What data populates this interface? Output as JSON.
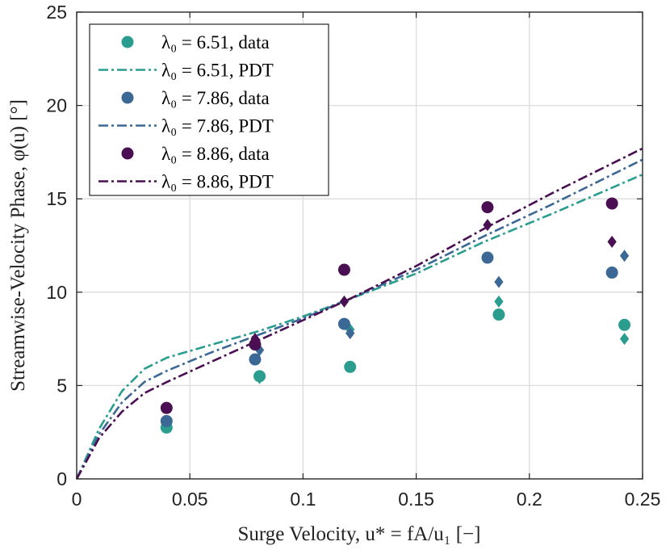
{
  "chart_data": {
    "type": "scatter",
    "title": "",
    "xlabel": "Surge Velocity, u* = fA/u₁ [−]",
    "ylabel": "Streamwise-Velocity Phase, φ(u) [°]",
    "xlim": [
      0,
      0.25
    ],
    "ylim": [
      0,
      25
    ],
    "x_ticks": [
      0,
      0.05,
      0.1,
      0.15,
      0.2,
      0.25
    ],
    "x_tick_labels": [
      "0",
      "0.05",
      "0.1",
      "0.15",
      "0.2",
      "0.25"
    ],
    "y_ticks": [
      0,
      5,
      10,
      15,
      20,
      25
    ],
    "y_tick_labels": [
      "0",
      "5",
      "10",
      "15",
      "20",
      "25"
    ],
    "grid": true,
    "legend_position": "top-left",
    "series": [
      {
        "name": "λ0 = 6.51, data",
        "legend_label": "λ₀ = 6.51, data",
        "kind": "markers",
        "color": "#2a9d8f",
        "circles": [
          [
            0.0397,
            2.75
          ],
          [
            0.0808,
            5.5
          ],
          [
            0.1208,
            6.0
          ],
          [
            0.1865,
            8.8
          ],
          [
            0.242,
            8.25
          ]
        ],
        "diamonds": [
          [
            0.0808,
            5.4
          ],
          [
            0.1208,
            8.0
          ],
          [
            0.1865,
            9.5
          ],
          [
            0.242,
            7.5
          ]
        ]
      },
      {
        "name": "λ0 = 6.51, PDT",
        "legend_label": "λ₀ = 6.51, PDT",
        "kind": "line",
        "color": "#2a9d8f",
        "x": [
          0,
          0.01,
          0.02,
          0.03,
          0.04,
          0.06,
          0.08,
          0.1,
          0.12,
          0.15,
          0.18,
          0.21,
          0.25
        ],
        "y": [
          0,
          2.7,
          4.7,
          5.9,
          6.5,
          7.2,
          7.9,
          8.7,
          9.6,
          11.0,
          12.7,
          14.2,
          16.3
        ]
      },
      {
        "name": "λ0 = 7.86, data",
        "legend_label": "λ₀ = 7.86, data",
        "kind": "markers",
        "color": "#3b6894",
        "circles": [
          [
            0.0397,
            3.1
          ],
          [
            0.0788,
            6.4
          ],
          [
            0.1182,
            8.3
          ],
          [
            0.1815,
            11.85
          ],
          [
            0.2365,
            11.05
          ]
        ],
        "diamonds": [
          [
            0.0808,
            6.9
          ],
          [
            0.1208,
            7.8
          ],
          [
            0.1865,
            10.55
          ],
          [
            0.242,
            11.95
          ]
        ]
      },
      {
        "name": "λ0 = 7.86, PDT",
        "legend_label": "λ₀ = 7.86, PDT",
        "kind": "line",
        "color": "#3b6894",
        "x": [
          0,
          0.01,
          0.02,
          0.03,
          0.04,
          0.06,
          0.08,
          0.1,
          0.12,
          0.15,
          0.18,
          0.21,
          0.25
        ],
        "y": [
          0,
          2.4,
          4.1,
          5.2,
          5.8,
          6.8,
          7.7,
          8.6,
          9.6,
          11.2,
          13.0,
          14.7,
          17.1
        ]
      },
      {
        "name": "λ0 = 8.86, data",
        "legend_label": "λ₀ = 8.86, data",
        "kind": "markers",
        "color": "#4a0f52",
        "circles": [
          [
            0.0397,
            3.8
          ],
          [
            0.0788,
            7.2
          ],
          [
            0.1182,
            11.2
          ],
          [
            0.1815,
            14.55
          ],
          [
            0.2365,
            14.75
          ]
        ],
        "diamonds": [
          [
            0.0788,
            7.5
          ],
          [
            0.1182,
            9.5
          ],
          [
            0.1815,
            13.6
          ],
          [
            0.2365,
            12.7
          ]
        ]
      },
      {
        "name": "λ0 = 8.86, PDT",
        "legend_label": "λ₀ = 8.86, PDT",
        "kind": "line",
        "color": "#4a0f52",
        "x": [
          0,
          0.01,
          0.02,
          0.03,
          0.04,
          0.06,
          0.08,
          0.1,
          0.12,
          0.15,
          0.18,
          0.21,
          0.25
        ],
        "y": [
          0,
          2.2,
          3.6,
          4.6,
          5.2,
          6.3,
          7.4,
          8.5,
          9.6,
          11.4,
          13.4,
          15.3,
          17.7
        ]
      }
    ]
  }
}
